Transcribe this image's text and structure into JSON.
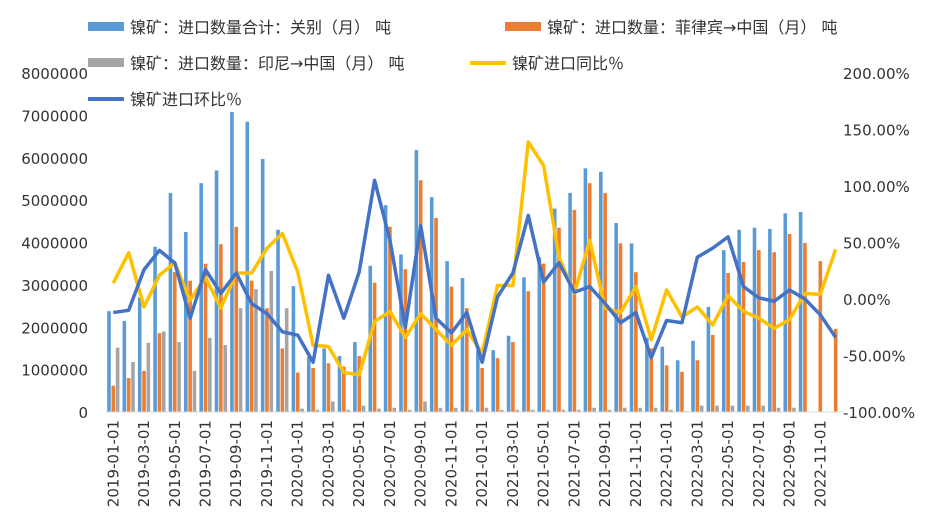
{
  "chart_data": {
    "type": "bar",
    "title": "",
    "colors": {
      "total": "#5B9BD5",
      "philippines": "#ED7D31",
      "indonesia": "#A5A5A5",
      "yoy": "#FFC000",
      "mom": "#4472C4"
    },
    "y_left": {
      "range": [
        0,
        8000000
      ],
      "ticks": [
        "0",
        "1000000",
        "2000000",
        "3000000",
        "4000000",
        "5000000",
        "6000000",
        "7000000",
        "8000000"
      ]
    },
    "y_right": {
      "range": [
        -100,
        200
      ],
      "unit": "%",
      "ticks": [
        "-100.00%",
        "-50.00%",
        "0.00%",
        "50.00%",
        "100.00%",
        "150.00%",
        "200.00%"
      ]
    },
    "x_tick_labels": [
      "2019-01-01",
      "2019-03-01",
      "2019-05-01",
      "2019-07-01",
      "2019-09-01",
      "2019-11-01",
      "2020-01-01",
      "2020-03-01",
      "2020-05-01",
      "2020-07-01",
      "2020-09-01",
      "2020-11-01",
      "2021-01-01",
      "2021-03-01",
      "2021-05-01",
      "2021-07-01",
      "2021-09-01",
      "2021-11-01",
      "2022-01-01",
      "2022-03-01",
      "2022-05-01",
      "2022-07-01",
      "2022-09-01",
      "2022-11-01"
    ],
    "months": [
      "2019-01",
      "2019-02",
      "2019-03",
      "2019-04",
      "2019-05",
      "2019-06",
      "2019-07",
      "2019-08",
      "2019-09",
      "2019-10",
      "2019-11",
      "2019-12",
      "2020-01",
      "2020-02",
      "2020-03",
      "2020-04",
      "2020-05",
      "2020-06",
      "2020-07",
      "2020-08",
      "2020-09",
      "2020-10",
      "2020-11",
      "2020-12",
      "2021-01",
      "2021-02",
      "2021-03",
      "2021-04",
      "2021-05",
      "2021-06",
      "2021-07",
      "2021-08",
      "2021-09",
      "2021-10",
      "2021-11",
      "2021-12",
      "2022-01",
      "2022-02",
      "2022-03",
      "2022-04",
      "2022-05",
      "2022-06",
      "2022-07",
      "2022-08",
      "2022-09",
      "2022-10",
      "2022-11",
      "2022-12"
    ],
    "series": [
      {
        "name": "镍矿：进口数量合计：关别（月） 吨",
        "kind": "bar",
        "axis": "left",
        "values": [
          2380000,
          2150000,
          2700000,
          3900000,
          5170000,
          4250000,
          5400000,
          5700000,
          7080000,
          6850000,
          5970000,
          4300000,
          2970000,
          1300000,
          1500000,
          1320000,
          1650000,
          3450000,
          4880000,
          3720000,
          6180000,
          5070000,
          3560000,
          3160000,
          1450000,
          1460000,
          1800000,
          3180000,
          3650000,
          4800000,
          5170000,
          5750000,
          5670000,
          4460000,
          3980000,
          1750000,
          1540000,
          1220000,
          1680000,
          2480000,
          3820000,
          4300000,
          4350000,
          4320000,
          4690000,
          4720000,
          0,
          0
        ]
      },
      {
        "name": "镍矿：进口数量：菲律宾→中国（月） 吨",
        "kind": "bar",
        "axis": "left",
        "values": [
          620000,
          800000,
          970000,
          1860000,
          3300000,
          3100000,
          3500000,
          3960000,
          4370000,
          3100000,
          2450000,
          1500000,
          930000,
          1040000,
          1150000,
          1070000,
          1320000,
          3050000,
          4370000,
          3370000,
          5470000,
          4580000,
          2960000,
          2450000,
          1040000,
          1270000,
          1650000,
          2850000,
          3500000,
          4350000,
          4770000,
          5400000,
          5170000,
          3980000,
          3300000,
          1500000,
          1100000,
          950000,
          1220000,
          1820000,
          3280000,
          3540000,
          3820000,
          3770000,
          4200000,
          3990000,
          3560000,
          1960000
        ]
      },
      {
        "name": "镍矿：进口数量：印尼→中国（月） 吨",
        "kind": "bar",
        "axis": "left",
        "values": [
          1520000,
          1180000,
          1630000,
          1900000,
          1650000,
          970000,
          1750000,
          1580000,
          2450000,
          2900000,
          3330000,
          2450000,
          80000,
          50000,
          250000,
          50000,
          150000,
          80000,
          100000,
          50000,
          250000,
          100000,
          100000,
          50000,
          100000,
          50000,
          50000,
          50000,
          50000,
          50000,
          50000,
          100000,
          50000,
          100000,
          100000,
          100000,
          50000,
          20000,
          150000,
          150000,
          150000,
          150000,
          150000,
          100000,
          100000,
          0,
          0,
          0
        ]
      },
      {
        "name": "镍矿进口同比％",
        "kind": "line",
        "axis": "right",
        "values": [
          14,
          41,
          -7,
          21,
          32,
          -1,
          19,
          -8,
          23,
          23,
          45,
          58,
          24,
          -41,
          -42,
          -65,
          -67,
          -20,
          -11,
          -34,
          -13,
          -27,
          -41,
          -27,
          -48,
          12,
          12,
          139,
          118,
          37,
          5,
          52,
          -8,
          -12,
          11,
          -36,
          8,
          -16,
          -7,
          -23,
          3,
          -11,
          -17,
          -26,
          -18,
          5,
          4,
          44
        ]
      },
      {
        "name": "镍矿进口环比％",
        "kind": "line",
        "axis": "right",
        "values": [
          -12,
          -10,
          26,
          43,
          32,
          -17,
          26,
          5,
          23,
          -4,
          -13,
          -29,
          -32,
          -56,
          21,
          -17,
          24,
          105,
          52,
          -25,
          65,
          -17,
          -30,
          -12,
          -56,
          2,
          23,
          74,
          15,
          32,
          6,
          11,
          -4,
          -21,
          -12,
          -52,
          -19,
          -21,
          37,
          45,
          55,
          11,
          1,
          -2,
          8,
          0,
          -14,
          -34
        ]
      }
    ],
    "legend_placement": "top",
    "grid": false
  }
}
